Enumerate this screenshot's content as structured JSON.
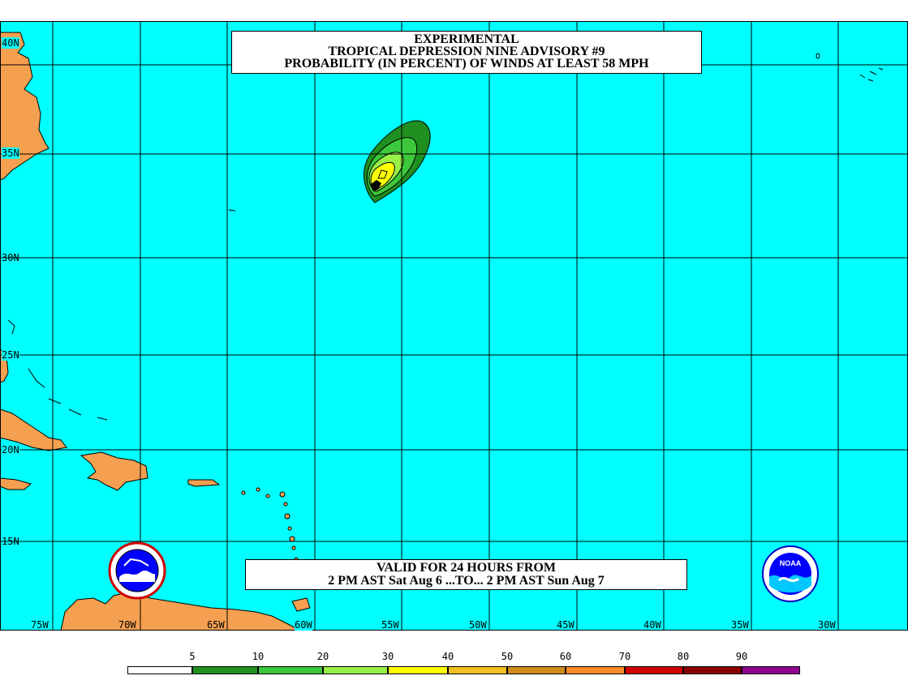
{
  "title": {
    "line1": "EXPERIMENTAL",
    "line2": "TROPICAL DEPRESSION NINE ADVISORY #9",
    "line3": "PROBABILITY (IN PERCENT) OF WINDS AT LEAST 58 MPH"
  },
  "valid": {
    "line1": "VALID FOR 24 HOURS FROM",
    "line2": "2 PM AST Sat Aug 6 ...TO... 2 PM AST Sun Aug 7"
  },
  "lat_labels": [
    "40N",
    "35N",
    "30N",
    "25N",
    "20N",
    "15N"
  ],
  "lon_labels": [
    "75W",
    "70W",
    "65W",
    "60W",
    "55W",
    "50W",
    "45W",
    "40W",
    "35W",
    "30W"
  ],
  "scale": {
    "ticks": [
      "5",
      "10",
      "20",
      "30",
      "40",
      "50",
      "60",
      "70",
      "80",
      "90"
    ],
    "colors": [
      "#ffffff",
      "#1f8f1f",
      "#3cc83c",
      "#98f048",
      "#ffff00",
      "#f0c020",
      "#d08c18",
      "#ff8c28",
      "#d00000",
      "#8b0000",
      "#900090"
    ]
  },
  "colors": {
    "ocean": "#00ffff",
    "land": "#f5a050",
    "grid": "#000000"
  },
  "logos": {
    "left": "nws-logo",
    "right": "noaa-logo",
    "right_text": "NOAA"
  }
}
